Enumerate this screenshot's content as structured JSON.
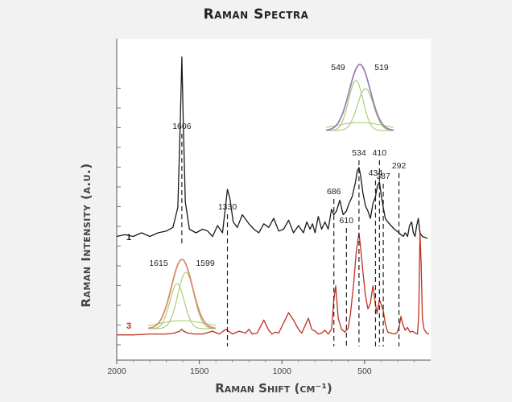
{
  "chart_data": {
    "type": "line",
    "title": "Raman Spectra",
    "xlabel": "Raman Shift (cm⁻¹)",
    "ylabel": "Raman Intensity (a.u.)",
    "xlim": [
      2000,
      100
    ],
    "x_reversed": true,
    "x_ticks": [
      2000,
      1500,
      1000,
      500
    ],
    "grid": false,
    "series": [
      {
        "name": "1",
        "color": "#1a1a1a",
        "x": [
          2000,
          1950,
          1900,
          1850,
          1800,
          1750,
          1700,
          1660,
          1630,
          1615,
          1606,
          1598,
          1585,
          1560,
          1520,
          1480,
          1450,
          1420,
          1390,
          1360,
          1340,
          1330,
          1315,
          1295,
          1270,
          1240,
          1200,
          1170,
          1140,
          1110,
          1080,
          1050,
          1020,
          990,
          960,
          930,
          900,
          870,
          850,
          830,
          815,
          800,
          780,
          760,
          740,
          720,
          700,
          686,
          670,
          650,
          630,
          610,
          595,
          575,
          555,
          545,
          534,
          525,
          510,
          495,
          480,
          465,
          450,
          434,
          422,
          410,
          398,
          387,
          375,
          360,
          340,
          320,
          305,
          292,
          280,
          265,
          255,
          240,
          228,
          215,
          205,
          195,
          185,
          175,
          165,
          150,
          120
        ],
        "y": [
          6,
          7,
          6,
          8,
          6,
          8,
          9,
          11,
          22,
          70,
          105,
          72,
          25,
          10,
          8,
          10,
          9,
          6,
          12,
          8,
          24,
          32,
          27,
          14,
          11,
          18,
          13,
          10,
          8,
          13,
          11,
          16,
          9,
          10,
          15,
          8,
          12,
          8,
          14,
          10,
          13,
          8,
          17,
          10,
          14,
          10,
          21,
          18,
          20,
          26,
          18,
          20,
          24,
          28,
          36,
          42,
          44,
          40,
          30,
          23,
          20,
          16,
          24,
          28,
          34,
          36,
          28,
          22,
          16,
          14,
          12,
          10,
          9,
          8,
          7,
          6,
          8,
          6,
          12,
          14,
          8,
          6,
          12,
          16,
          8,
          6,
          5
        ]
      },
      {
        "name": "3",
        "color": "#c0301e",
        "x": [
          2000,
          1900,
          1800,
          1700,
          1650,
          1620,
          1607,
          1595,
          1570,
          1530,
          1480,
          1420,
          1380,
          1340,
          1300,
          1260,
          1220,
          1200,
          1180,
          1150,
          1110,
          1080,
          1060,
          1040,
          1020,
          990,
          960,
          930,
          900,
          880,
          860,
          840,
          820,
          800,
          780,
          760,
          740,
          720,
          700,
          686,
          675,
          660,
          640,
          620,
          600,
          585,
          565,
          550,
          540,
          534,
          525,
          510,
          495,
          480,
          465,
          450,
          434,
          425,
          410,
          400,
          387,
          375,
          360,
          340,
          320,
          305,
          292,
          280,
          270,
          255,
          240,
          225,
          210,
          195,
          180,
          172,
          165,
          158,
          150,
          140,
          125,
          110
        ],
        "y": [
          2,
          2,
          3,
          3,
          4,
          6,
          8,
          6,
          4,
          3,
          3,
          6,
          3,
          8,
          3,
          6,
          4,
          8,
          3,
          4,
          18,
          7,
          3,
          5,
          4,
          15,
          26,
          18,
          8,
          4,
          12,
          20,
          8,
          6,
          3,
          4,
          7,
          3,
          8,
          40,
          55,
          20,
          8,
          5,
          9,
          25,
          60,
          92,
          105,
          112,
          98,
          70,
          45,
          30,
          36,
          55,
          35,
          25,
          40,
          35,
          28,
          14,
          5,
          4,
          3,
          4,
          10,
          22,
          14,
          7,
          10,
          5,
          6,
          4,
          3,
          25,
          112,
          80,
          20,
          8,
          4,
          3
        ]
      }
    ],
    "peak_labels": [
      {
        "x": 1606,
        "text": "1606"
      },
      {
        "x": 1330,
        "text": "1330"
      },
      {
        "x": 686,
        "text": "686"
      },
      {
        "x": 610,
        "text": "610"
      },
      {
        "x": 534,
        "text": "534"
      },
      {
        "x": 434,
        "text": "434"
      },
      {
        "x": 410,
        "text": "410"
      },
      {
        "x": 387,
        "text": "387"
      },
      {
        "x": 292,
        "text": "292"
      }
    ],
    "insets": [
      {
        "labels": [
          "549",
          "519"
        ]
      },
      {
        "labels": [
          "1615",
          "1599"
        ]
      }
    ],
    "colors": {
      "fit_envelope": "#9a7fb0",
      "fit_components": "#a6c86e",
      "fit_envelope_2": "#d98a6a"
    }
  }
}
